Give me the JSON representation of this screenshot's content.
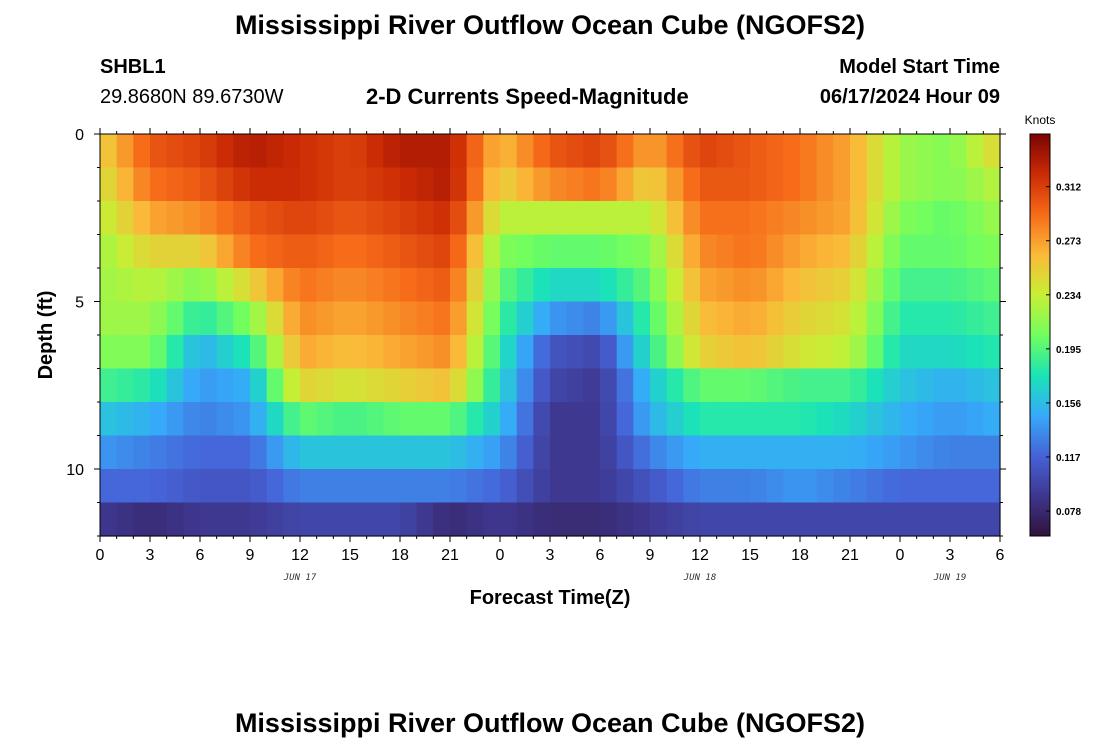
{
  "page": {
    "title": "Mississippi River Outflow Ocean Cube (NGOFS2)",
    "station_id": "SHBL1",
    "station_coords": "29.8680N  89.6730W",
    "subtitle": "2-D Currents Speed-Magnitude",
    "model_start_label": "Model Start Time",
    "model_start_value": "06/17/2024 Hour 09",
    "bottom_title": "Mississippi River Outflow Ocean Cube (NGOFS2)"
  },
  "chart_data": {
    "type": "heatmap",
    "title": "2-D Currents Speed-Magnitude",
    "xlabel": "Forecast Time(Z)",
    "ylabel": "Depth (ft)",
    "x_range_hours": [
      0,
      54
    ],
    "x_tick_labels": [
      "0",
      "3",
      "6",
      "9",
      "12",
      "15",
      "18",
      "21",
      "0",
      "3",
      "6",
      "9",
      "12",
      "15",
      "18",
      "21",
      "0",
      "3",
      "6"
    ],
    "date_labels": [
      {
        "text": "JUN 17",
        "hour": 12
      },
      {
        "text": "JUN 18",
        "hour": 36
      },
      {
        "text": "JUN 19",
        "hour": 51
      }
    ],
    "y_range": [
      0,
      12
    ],
    "y_inverted": true,
    "y_tick_labels": [
      "0",
      "5",
      "10"
    ],
    "y_tick_values": [
      0,
      5,
      10
    ],
    "depth_levels": [
      0.5,
      1.5,
      2.5,
      3.5,
      4.5,
      5.5,
      6.5,
      7.5,
      8.5,
      9.5,
      10.5,
      11.5
    ],
    "time_hours": [
      0,
      3,
      6,
      9,
      12,
      15,
      18,
      21,
      24,
      27,
      30,
      33,
      36,
      39,
      42,
      45,
      48,
      51,
      54
    ],
    "speed_knots": [
      [
        0.25,
        0.3,
        0.31,
        0.33,
        0.32,
        0.31,
        0.33,
        0.33,
        0.26,
        0.3,
        0.31,
        0.27,
        0.31,
        0.3,
        0.29,
        0.27,
        0.22,
        0.21,
        0.25
      ],
      [
        0.24,
        0.29,
        0.3,
        0.32,
        0.32,
        0.31,
        0.32,
        0.33,
        0.25,
        0.28,
        0.29,
        0.25,
        0.3,
        0.3,
        0.29,
        0.27,
        0.22,
        0.21,
        0.23
      ],
      [
        0.23,
        0.27,
        0.28,
        0.3,
        0.31,
        0.3,
        0.31,
        0.32,
        0.23,
        0.23,
        0.23,
        0.23,
        0.29,
        0.29,
        0.28,
        0.27,
        0.21,
        0.2,
        0.22
      ],
      [
        0.22,
        0.25,
        0.25,
        0.29,
        0.3,
        0.29,
        0.3,
        0.31,
        0.21,
        0.2,
        0.2,
        0.21,
        0.28,
        0.29,
        0.27,
        0.26,
        0.2,
        0.2,
        0.21
      ],
      [
        0.22,
        0.23,
        0.21,
        0.25,
        0.29,
        0.28,
        0.29,
        0.3,
        0.2,
        0.17,
        0.17,
        0.2,
        0.27,
        0.28,
        0.26,
        0.25,
        0.19,
        0.19,
        0.2
      ],
      [
        0.22,
        0.22,
        0.18,
        0.21,
        0.28,
        0.27,
        0.28,
        0.29,
        0.19,
        0.14,
        0.13,
        0.19,
        0.26,
        0.27,
        0.25,
        0.24,
        0.18,
        0.18,
        0.19
      ],
      [
        0.21,
        0.21,
        0.15,
        0.18,
        0.27,
        0.26,
        0.27,
        0.28,
        0.18,
        0.11,
        0.1,
        0.18,
        0.25,
        0.26,
        0.24,
        0.23,
        0.17,
        0.17,
        0.18
      ],
      [
        0.19,
        0.18,
        0.14,
        0.15,
        0.25,
        0.24,
        0.25,
        0.26,
        0.17,
        0.1,
        0.09,
        0.16,
        0.2,
        0.2,
        0.19,
        0.19,
        0.16,
        0.15,
        0.16
      ],
      [
        0.16,
        0.15,
        0.13,
        0.14,
        0.2,
        0.19,
        0.2,
        0.2,
        0.16,
        0.09,
        0.09,
        0.15,
        0.18,
        0.18,
        0.18,
        0.17,
        0.15,
        0.14,
        0.15
      ],
      [
        0.14,
        0.13,
        0.12,
        0.12,
        0.16,
        0.16,
        0.16,
        0.16,
        0.14,
        0.09,
        0.09,
        0.13,
        0.15,
        0.15,
        0.15,
        0.15,
        0.14,
        0.13,
        0.13
      ],
      [
        0.12,
        0.12,
        0.11,
        0.11,
        0.13,
        0.13,
        0.13,
        0.13,
        0.12,
        0.09,
        0.09,
        0.11,
        0.13,
        0.13,
        0.14,
        0.13,
        0.12,
        0.12,
        0.12
      ],
      [
        0.09,
        0.08,
        0.09,
        0.09,
        0.1,
        0.1,
        0.1,
        0.08,
        0.09,
        0.08,
        0.08,
        0.09,
        0.1,
        0.1,
        0.1,
        0.1,
        0.1,
        0.1,
        0.1
      ]
    ],
    "colorbar": {
      "unit": "Knots",
      "min": 0.06,
      "max": 0.35,
      "tick_values": [
        0.078,
        0.117,
        0.156,
        0.195,
        0.234,
        0.273,
        0.312
      ],
      "tick_labels": [
        "0.078",
        "0.117",
        "0.156",
        "0.195",
        "0.234",
        "0.273",
        "0.312"
      ],
      "colormap_stops": [
        "#30123b",
        "#3e378f",
        "#4662d7",
        "#36aaf9",
        "#1ae4b6",
        "#72fe5e",
        "#c7ef34",
        "#faba39",
        "#f66b19",
        "#cb2a04",
        "#7a0403"
      ]
    }
  }
}
